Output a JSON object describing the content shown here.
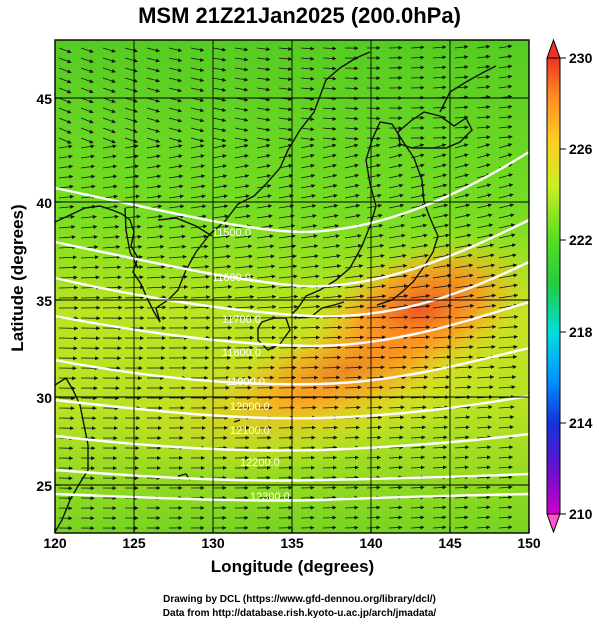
{
  "title": "MSM 21Z21Jan2025 (200.0hPa)",
  "map": {
    "xaxis": {
      "label": "Longitude (degrees)",
      "range": [
        120,
        150
      ],
      "ticks": [
        "120",
        "125",
        "130",
        "135",
        "140",
        "145",
        "150"
      ]
    },
    "yaxis": {
      "label": "Latitude  (degrees)",
      "range": [
        22.4,
        47.6
      ],
      "ticks": [
        "25",
        "30",
        "35",
        "40",
        "45"
      ]
    },
    "field": "temperature",
    "arrows": "wind vectors",
    "contours": {
      "color": "#ffffff",
      "labels": [
        "11500.0",
        "11600.0",
        "11700.0",
        "11800.0",
        "11900.0",
        "12000.0",
        "12100.0",
        "12200.0",
        "12300.0"
      ]
    }
  },
  "colorbar": {
    "range": [
      210,
      230
    ],
    "tick_labels": [
      "230",
      "226",
      "222",
      "218",
      "214",
      "210"
    ],
    "colors": [
      "#cc00cc",
      "#2244dd",
      "#00ccdd",
      "#22cc22",
      "#ccee22",
      "#ff9922",
      "#ee3322"
    ]
  },
  "credits": {
    "line1": "Drawing by DCL (https://www.gfd-dennou.org/library/dcl/)",
    "line2": "Data from http://database.rish.kyoto-u.ac.jp/arch/jmadata/"
  }
}
